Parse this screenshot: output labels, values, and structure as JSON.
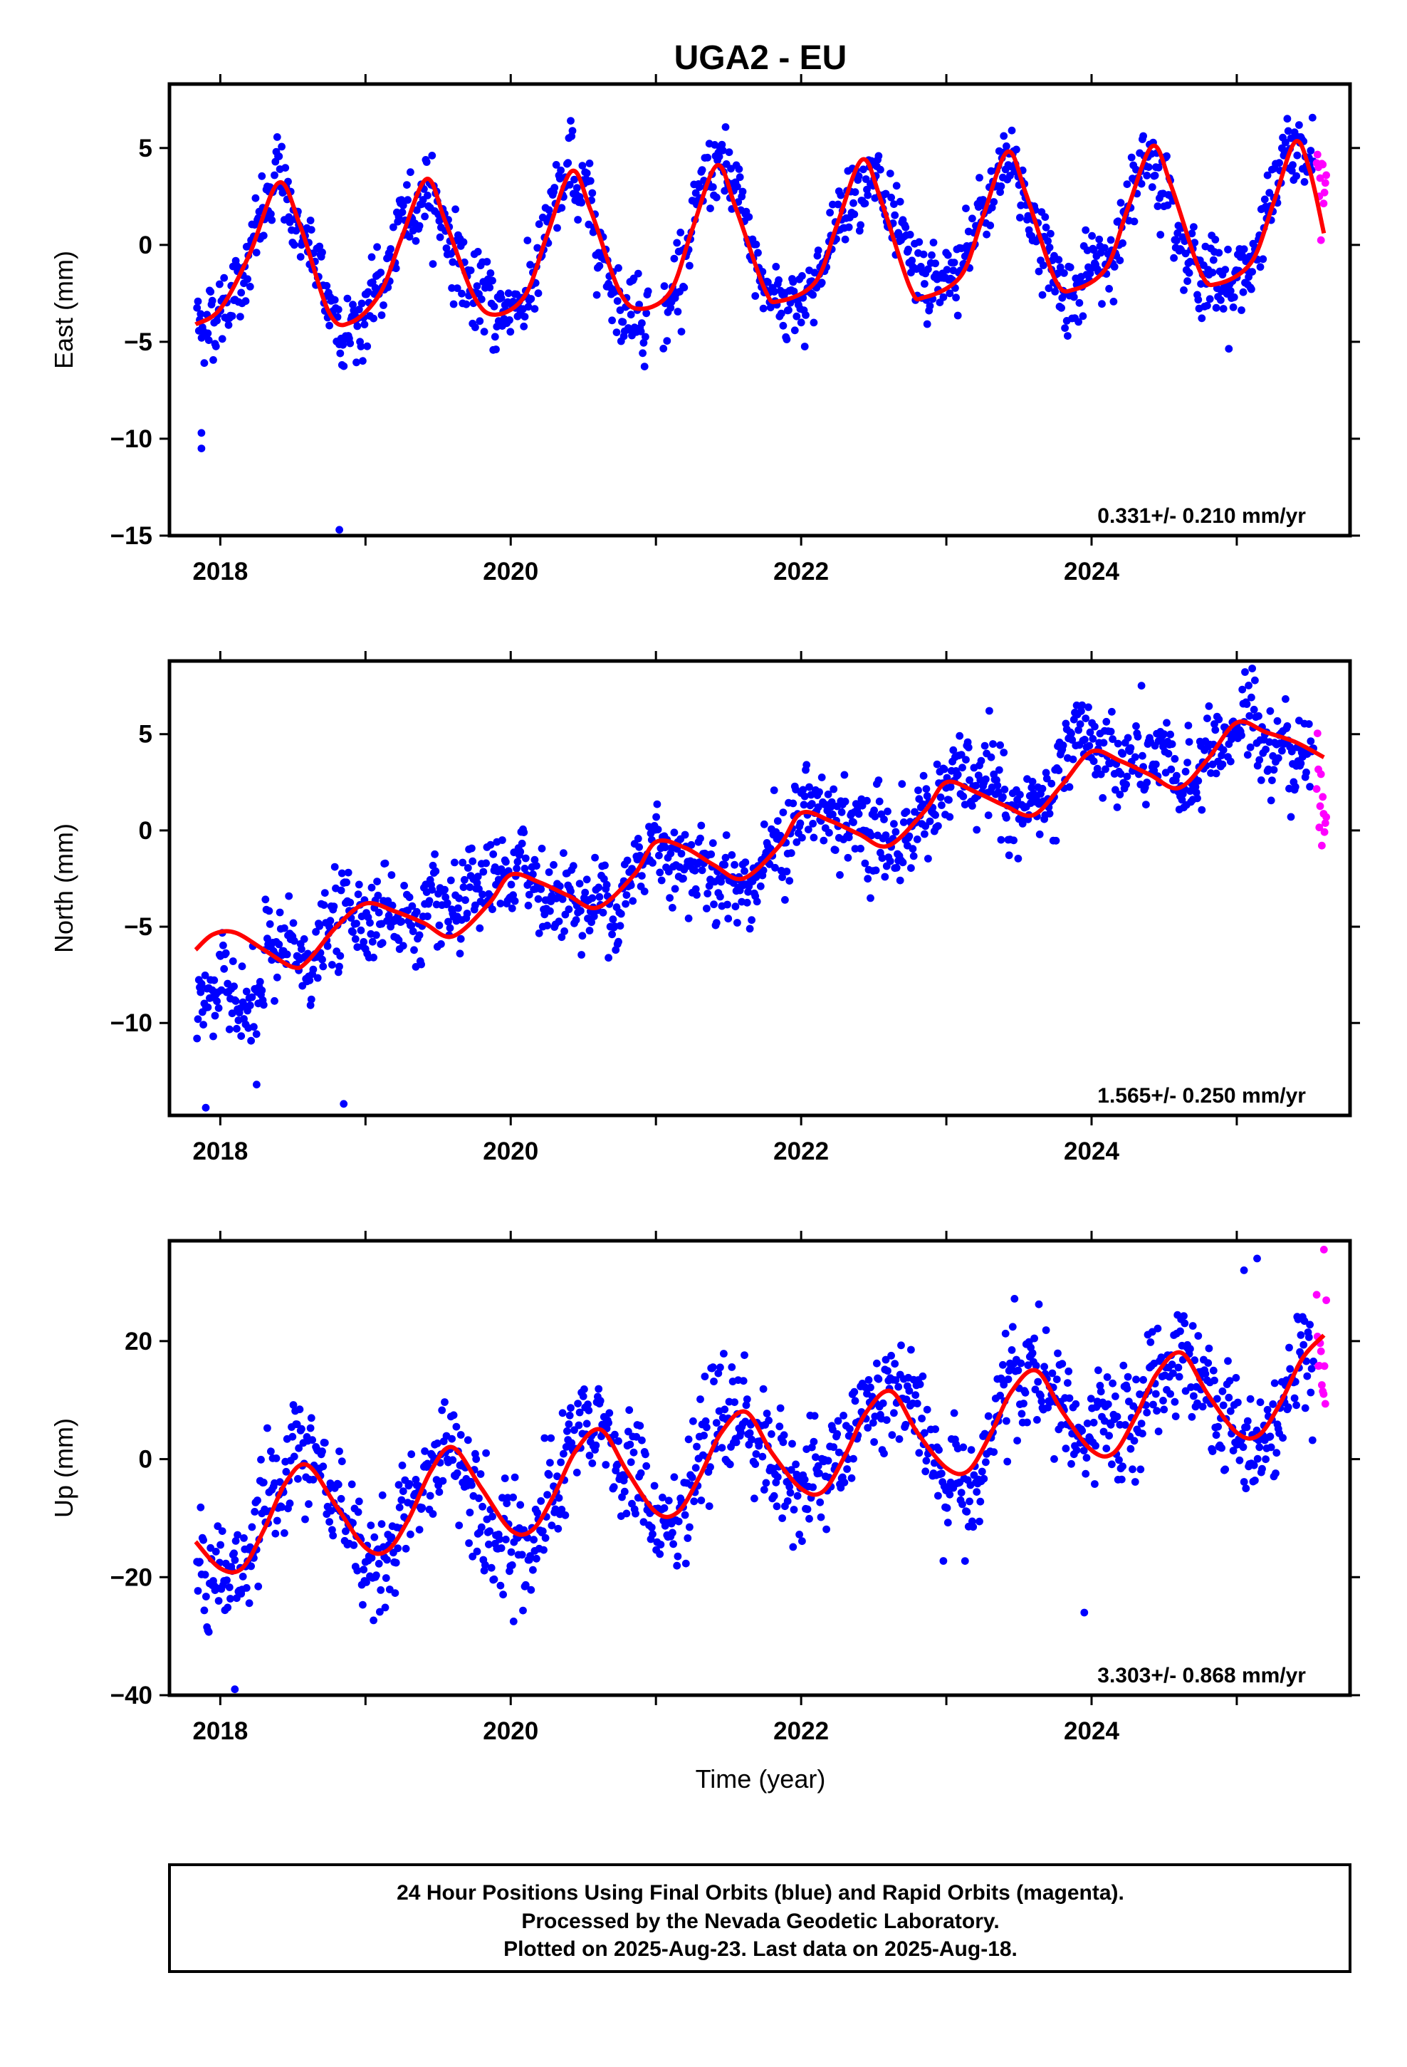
{
  "title": "UGA2 - EU",
  "xlabel": "Time (year)",
  "footer": {
    "lines": [
      "24 Hour Positions Using Final Orbits (blue) and Rapid Orbits (magenta).",
      "Processed by the Nevada Geodetic Laboratory.",
      "Plotted on 2025-Aug-23. Last data on 2025-Aug-18."
    ]
  },
  "colors": {
    "final": "#0000ff",
    "rapid": "#ff00ff",
    "fit": "#ff0000",
    "frame": "#000000"
  },
  "chart_data": [
    {
      "type": "scatter",
      "component": "east",
      "ylabel": "East (mm)",
      "rate": "0.331+/- 0.210 mm/yr",
      "xlim": [
        2017.65,
        2025.78
      ],
      "ylim": [
        -15,
        8.3
      ],
      "xticks": [
        2018,
        2020,
        2022,
        2024
      ],
      "yticks": [
        5,
        0,
        -5,
        -10,
        -15
      ],
      "ytick_labels": [
        "5",
        "0",
        "−5",
        "−10",
        "−15"
      ],
      "fit": {
        "x": [
          2017.83,
          2018.0,
          2018.2,
          2018.4,
          2018.55,
          2018.75,
          2018.9,
          2019.1,
          2019.25,
          2019.42,
          2019.55,
          2019.75,
          2019.9,
          2020.1,
          2020.25,
          2020.42,
          2020.55,
          2020.75,
          2020.9,
          2021.1,
          2021.25,
          2021.42,
          2021.55,
          2021.75,
          2021.85,
          2022.1,
          2022.25,
          2022.42,
          2022.55,
          2022.75,
          2022.85,
          2023.1,
          2023.25,
          2023.42,
          2023.55,
          2023.75,
          2023.88,
          2024.1,
          2024.25,
          2024.42,
          2024.55,
          2024.75,
          2024.87,
          2025.1,
          2025.25,
          2025.4,
          2025.5,
          2025.6
        ],
        "y": [
          -4.1,
          -3.3,
          -0.5,
          3.2,
          1.0,
          -3.5,
          -4.0,
          -2.5,
          0.4,
          3.4,
          1.2,
          -2.7,
          -3.6,
          -2.6,
          0.5,
          3.8,
          1.8,
          -2.4,
          -3.3,
          -2.4,
          0.8,
          4.1,
          1.9,
          -2.3,
          -2.9,
          -1.9,
          1.1,
          4.4,
          2.3,
          -2.2,
          -2.7,
          -1.6,
          1.4,
          4.8,
          2.6,
          -1.8,
          -2.3,
          -1.2,
          1.9,
          5.1,
          3.0,
          -1.4,
          -2.0,
          -0.9,
          2.1,
          5.3,
          3.9,
          0.6
        ]
      },
      "outliers": [
        {
          "x": 2017.87,
          "y": -9.7
        },
        {
          "x": 2017.87,
          "y": -10.5
        },
        {
          "x": 2018.82,
          "y": -14.7
        }
      ]
    },
    {
      "type": "scatter",
      "component": "north",
      "ylabel": "North (mm)",
      "rate": "1.565+/- 0.250 mm/yr",
      "xlim": [
        2017.65,
        2025.78
      ],
      "ylim": [
        -14.8,
        8.8
      ],
      "xticks": [
        2018,
        2020,
        2022,
        2024
      ],
      "yticks": [
        5,
        0,
        -5,
        -10
      ],
      "ytick_labels": [
        "5",
        "0",
        "−5",
        "−10"
      ],
      "fit": {
        "x": [
          2017.83,
          2017.95,
          2018.1,
          2018.3,
          2018.5,
          2018.6,
          2018.8,
          2019.0,
          2019.2,
          2019.4,
          2019.6,
          2019.85,
          2020.0,
          2020.2,
          2020.4,
          2020.6,
          2020.85,
          2021.0,
          2021.2,
          2021.4,
          2021.6,
          2021.85,
          2022.0,
          2022.2,
          2022.4,
          2022.6,
          2022.85,
          2023.0,
          2023.2,
          2023.4,
          2023.6,
          2023.8,
          2024.0,
          2024.2,
          2024.4,
          2024.6,
          2024.8,
          2025.0,
          2025.2,
          2025.4,
          2025.6
        ],
        "y": [
          -6.2,
          -5.4,
          -5.3,
          -6.2,
          -7.1,
          -6.8,
          -5.0,
          -3.8,
          -4.2,
          -4.8,
          -5.5,
          -3.8,
          -2.3,
          -2.7,
          -3.4,
          -4.0,
          -2.3,
          -0.6,
          -0.9,
          -1.8,
          -2.5,
          -0.8,
          0.9,
          0.5,
          -0.2,
          -0.8,
          1.0,
          2.5,
          2.0,
          1.3,
          0.8,
          2.4,
          4.1,
          3.6,
          2.9,
          2.2,
          3.7,
          5.6,
          5.1,
          4.6,
          3.8
        ]
      },
      "outliers": [
        {
          "x": 2017.9,
          "y": -14.4
        },
        {
          "x": 2018.85,
          "y": -14.2
        },
        {
          "x": 2018.25,
          "y": -13.2
        }
      ]
    },
    {
      "type": "scatter",
      "component": "up",
      "ylabel": "Up (mm)",
      "rate": "3.303+/- 0.868 mm/yr",
      "xlim": [
        2017.65,
        2025.78
      ],
      "ylim": [
        -40,
        37
      ],
      "xticks": [
        2018,
        2020,
        2022,
        2024
      ],
      "yticks": [
        20,
        0,
        -20,
        -40
      ],
      "ytick_labels": [
        "20",
        "0",
        "−20",
        "−40"
      ],
      "fit": {
        "x": [
          2017.83,
          2018.0,
          2018.15,
          2018.3,
          2018.45,
          2018.6,
          2018.8,
          2019.0,
          2019.15,
          2019.3,
          2019.45,
          2019.6,
          2019.8,
          2020.0,
          2020.15,
          2020.3,
          2020.45,
          2020.62,
          2020.8,
          2021.0,
          2021.15,
          2021.3,
          2021.45,
          2021.62,
          2021.8,
          2022.0,
          2022.15,
          2022.3,
          2022.45,
          2022.62,
          2022.8,
          2023.0,
          2023.15,
          2023.3,
          2023.45,
          2023.62,
          2023.8,
          2024.0,
          2024.15,
          2024.3,
          2024.45,
          2024.62,
          2024.8,
          2025.0,
          2025.15,
          2025.3,
          2025.45,
          2025.6
        ],
        "y": [
          -14.0,
          -18.5,
          -18.5,
          -12.0,
          -4.0,
          -1.0,
          -8.0,
          -15.0,
          -15.5,
          -10.0,
          -2.0,
          2.0,
          -5.0,
          -12.0,
          -12.0,
          -6.0,
          1.5,
          5.0,
          -2.0,
          -9.0,
          -9.0,
          -3.0,
          4.5,
          8.0,
          1.0,
          -5.0,
          -5.5,
          0.5,
          8.0,
          11.5,
          4.5,
          -1.5,
          -2.0,
          4.0,
          11.5,
          15.0,
          8.0,
          1.5,
          1.0,
          7.0,
          14.5,
          18.0,
          11.0,
          4.5,
          4.0,
          9.5,
          17.0,
          21.0
        ]
      },
      "outliers": [
        {
          "x": 2025.14,
          "y": 34.0
        },
        {
          "x": 2025.05,
          "y": 32.0
        },
        {
          "x": 2018.1,
          "y": -39.0
        },
        {
          "x": 2023.95,
          "y": -26.0
        },
        {
          "x": 2020.02,
          "y": -27.5
        }
      ]
    }
  ]
}
